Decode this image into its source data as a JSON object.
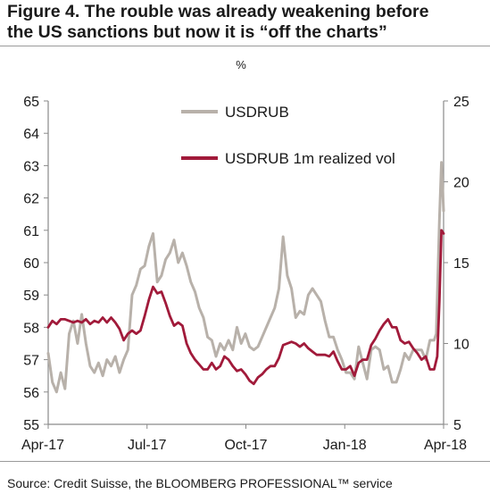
{
  "figure": {
    "title_line1": "Figure 4. The rouble was already weakening before",
    "title_line2": "the US sanctions but now it is “off the charts”",
    "source": "Source: Credit Suisse, the BLOOMBERG PROFESSIONAL™ service"
  },
  "colors": {
    "usdrub": "#b8b1aa",
    "vol": "#a11a3a",
    "axis": "#8a8a8a",
    "rule": "#9a9a9a"
  },
  "chart_data": {
    "type": "line",
    "right_axis_unit": "%",
    "x_tick_labels": [
      "Apr-17",
      "Jul-17",
      "Oct-17",
      "Jan-18",
      "Apr-18"
    ],
    "y_left_ticks": [
      "55",
      "56",
      "57",
      "58",
      "59",
      "60",
      "61",
      "62",
      "63",
      "64",
      "65"
    ],
    "y_right_ticks": [
      "5",
      "10",
      "15",
      "20",
      "25"
    ],
    "ylim_left": [
      55,
      65
    ],
    "ylim_right": [
      5,
      25
    ],
    "x_range": [
      "2017-04-01",
      "2018-04-13"
    ],
    "grid": false,
    "legend_position": "top-center",
    "series": [
      {
        "name": "USDRUB",
        "axis": "left",
        "color": "#b8b1aa",
        "points": [
          [
            "2017-04-01",
            57.2
          ],
          [
            "2017-04-05",
            56.3
          ],
          [
            "2017-04-09",
            56.0
          ],
          [
            "2017-04-13",
            56.6
          ],
          [
            "2017-04-17",
            56.1
          ],
          [
            "2017-04-21",
            57.8
          ],
          [
            "2017-04-25",
            58.2
          ],
          [
            "2017-04-29",
            57.5
          ],
          [
            "2017-05-03",
            58.4
          ],
          [
            "2017-05-07",
            57.5
          ],
          [
            "2017-05-11",
            56.8
          ],
          [
            "2017-05-15",
            56.6
          ],
          [
            "2017-05-19",
            56.9
          ],
          [
            "2017-05-23",
            56.5
          ],
          [
            "2017-05-27",
            57.0
          ],
          [
            "2017-05-31",
            56.8
          ],
          [
            "2017-06-04",
            57.1
          ],
          [
            "2017-06-08",
            56.6
          ],
          [
            "2017-06-12",
            57.0
          ],
          [
            "2017-06-16",
            57.3
          ],
          [
            "2017-06-20",
            59.0
          ],
          [
            "2017-06-24",
            59.3
          ],
          [
            "2017-06-28",
            59.8
          ],
          [
            "2017-07-02",
            59.9
          ],
          [
            "2017-07-06",
            60.5
          ],
          [
            "2017-07-10",
            60.9
          ],
          [
            "2017-07-14",
            59.4
          ],
          [
            "2017-07-18",
            59.6
          ],
          [
            "2017-07-22",
            60.1
          ],
          [
            "2017-07-26",
            60.3
          ],
          [
            "2017-07-30",
            60.7
          ],
          [
            "2017-08-03",
            60.0
          ],
          [
            "2017-08-07",
            60.3
          ],
          [
            "2017-08-11",
            59.9
          ],
          [
            "2017-08-15",
            59.4
          ],
          [
            "2017-08-19",
            59.1
          ],
          [
            "2017-08-23",
            58.6
          ],
          [
            "2017-08-27",
            58.3
          ],
          [
            "2017-08-31",
            57.7
          ],
          [
            "2017-09-04",
            57.6
          ],
          [
            "2017-09-08",
            57.1
          ],
          [
            "2017-09-12",
            57.5
          ],
          [
            "2017-09-16",
            57.3
          ],
          [
            "2017-09-20",
            57.6
          ],
          [
            "2017-09-24",
            57.3
          ],
          [
            "2017-09-28",
            58.0
          ],
          [
            "2017-10-02",
            57.5
          ],
          [
            "2017-10-06",
            57.8
          ],
          [
            "2017-10-10",
            57.4
          ],
          [
            "2017-10-14",
            57.3
          ],
          [
            "2017-10-18",
            57.4
          ],
          [
            "2017-10-22",
            57.7
          ],
          [
            "2017-10-26",
            58.0
          ],
          [
            "2017-10-30",
            58.3
          ],
          [
            "2017-11-03",
            58.6
          ],
          [
            "2017-11-07",
            59.2
          ],
          [
            "2017-11-11",
            60.8
          ],
          [
            "2017-11-15",
            59.6
          ],
          [
            "2017-11-19",
            59.2
          ],
          [
            "2017-11-23",
            58.3
          ],
          [
            "2017-11-27",
            58.5
          ],
          [
            "2017-12-01",
            58.4
          ],
          [
            "2017-12-05",
            59.0
          ],
          [
            "2017-12-09",
            59.2
          ],
          [
            "2017-12-13",
            59.0
          ],
          [
            "2017-12-17",
            58.8
          ],
          [
            "2017-12-21",
            58.2
          ],
          [
            "2017-12-25",
            57.7
          ],
          [
            "2017-12-29",
            57.7
          ],
          [
            "2018-01-02",
            57.3
          ],
          [
            "2018-01-06",
            57.0
          ],
          [
            "2018-01-10",
            56.6
          ],
          [
            "2018-01-14",
            56.6
          ],
          [
            "2018-01-18",
            56.4
          ],
          [
            "2018-01-22",
            57.4
          ],
          [
            "2018-01-26",
            56.9
          ],
          [
            "2018-01-30",
            56.4
          ],
          [
            "2018-02-03",
            57.3
          ],
          [
            "2018-02-07",
            57.4
          ],
          [
            "2018-02-11",
            57.3
          ],
          [
            "2018-02-15",
            56.7
          ],
          [
            "2018-02-19",
            56.8
          ],
          [
            "2018-02-23",
            56.3
          ],
          [
            "2018-02-27",
            56.3
          ],
          [
            "2018-03-03",
            56.7
          ],
          [
            "2018-03-07",
            57.2
          ],
          [
            "2018-03-11",
            57.0
          ],
          [
            "2018-03-15",
            57.3
          ],
          [
            "2018-03-19",
            57.3
          ],
          [
            "2018-03-23",
            57.3
          ],
          [
            "2018-03-27",
            57.0
          ],
          [
            "2018-03-31",
            57.6
          ],
          [
            "2018-04-04",
            57.6
          ],
          [
            "2018-04-06",
            57.8
          ],
          [
            "2018-04-09",
            61.3
          ],
          [
            "2018-04-11",
            63.1
          ],
          [
            "2018-04-13",
            61.6
          ]
        ]
      },
      {
        "name": "USDRUB 1m realized vol",
        "axis": "right",
        "color": "#a11a3a",
        "points": [
          [
            "2017-04-01",
            11.0
          ],
          [
            "2017-04-05",
            11.4
          ],
          [
            "2017-04-09",
            11.2
          ],
          [
            "2017-04-13",
            11.5
          ],
          [
            "2017-04-17",
            11.5
          ],
          [
            "2017-04-21",
            11.4
          ],
          [
            "2017-04-25",
            11.3
          ],
          [
            "2017-04-29",
            11.4
          ],
          [
            "2017-05-03",
            11.3
          ],
          [
            "2017-05-07",
            11.5
          ],
          [
            "2017-05-11",
            11.2
          ],
          [
            "2017-05-15",
            11.4
          ],
          [
            "2017-05-19",
            11.3
          ],
          [
            "2017-05-23",
            11.6
          ],
          [
            "2017-05-27",
            11.3
          ],
          [
            "2017-05-31",
            11.6
          ],
          [
            "2017-06-04",
            11.3
          ],
          [
            "2017-06-08",
            10.9
          ],
          [
            "2017-06-12",
            10.2
          ],
          [
            "2017-06-16",
            10.6
          ],
          [
            "2017-06-20",
            10.8
          ],
          [
            "2017-06-24",
            10.6
          ],
          [
            "2017-06-28",
            10.8
          ],
          [
            "2017-07-02",
            11.7
          ],
          [
            "2017-07-06",
            12.7
          ],
          [
            "2017-07-10",
            13.5
          ],
          [
            "2017-07-14",
            13.1
          ],
          [
            "2017-07-18",
            13.2
          ],
          [
            "2017-07-22",
            12.5
          ],
          [
            "2017-07-26",
            11.7
          ],
          [
            "2017-07-30",
            11.1
          ],
          [
            "2017-08-03",
            11.3
          ],
          [
            "2017-08-07",
            11.1
          ],
          [
            "2017-08-11",
            10.0
          ],
          [
            "2017-08-15",
            9.4
          ],
          [
            "2017-08-19",
            9.0
          ],
          [
            "2017-08-23",
            8.7
          ],
          [
            "2017-08-27",
            8.4
          ],
          [
            "2017-08-31",
            8.4
          ],
          [
            "2017-09-04",
            8.8
          ],
          [
            "2017-09-08",
            8.4
          ],
          [
            "2017-09-12",
            8.6
          ],
          [
            "2017-09-16",
            9.2
          ],
          [
            "2017-09-20",
            9.0
          ],
          [
            "2017-09-24",
            8.6
          ],
          [
            "2017-09-28",
            8.3
          ],
          [
            "2017-10-02",
            8.4
          ],
          [
            "2017-10-06",
            8.1
          ],
          [
            "2017-10-10",
            7.7
          ],
          [
            "2017-10-14",
            7.5
          ],
          [
            "2017-10-18",
            7.9
          ],
          [
            "2017-10-22",
            8.1
          ],
          [
            "2017-10-26",
            8.4
          ],
          [
            "2017-10-30",
            8.6
          ],
          [
            "2017-11-03",
            8.6
          ],
          [
            "2017-11-07",
            9.1
          ],
          [
            "2017-11-11",
            9.9
          ],
          [
            "2017-11-15",
            10.0
          ],
          [
            "2017-11-19",
            10.1
          ],
          [
            "2017-11-23",
            10.0
          ],
          [
            "2017-11-27",
            9.8
          ],
          [
            "2017-12-01",
            10.0
          ],
          [
            "2017-12-05",
            9.7
          ],
          [
            "2017-12-09",
            9.5
          ],
          [
            "2017-12-13",
            9.3
          ],
          [
            "2017-12-17",
            9.3
          ],
          [
            "2017-12-21",
            9.3
          ],
          [
            "2017-12-25",
            9.2
          ],
          [
            "2017-12-29",
            9.5
          ],
          [
            "2018-01-02",
            8.9
          ],
          [
            "2018-01-06",
            8.4
          ],
          [
            "2018-01-10",
            8.4
          ],
          [
            "2018-01-14",
            8.6
          ],
          [
            "2018-01-18",
            8.0
          ],
          [
            "2018-01-22",
            8.8
          ],
          [
            "2018-01-26",
            9.0
          ],
          [
            "2018-01-30",
            9.0
          ],
          [
            "2018-02-03",
            9.9
          ],
          [
            "2018-02-07",
            10.3
          ],
          [
            "2018-02-11",
            10.8
          ],
          [
            "2018-02-15",
            11.2
          ],
          [
            "2018-02-19",
            11.5
          ],
          [
            "2018-02-23",
            11.0
          ],
          [
            "2018-02-27",
            11.0
          ],
          [
            "2018-03-03",
            10.2
          ],
          [
            "2018-03-07",
            10.0
          ],
          [
            "2018-03-11",
            10.1
          ],
          [
            "2018-03-15",
            9.7
          ],
          [
            "2018-03-19",
            9.4
          ],
          [
            "2018-03-23",
            9.0
          ],
          [
            "2018-03-27",
            9.2
          ],
          [
            "2018-03-31",
            8.4
          ],
          [
            "2018-04-04",
            8.4
          ],
          [
            "2018-04-07",
            9.2
          ],
          [
            "2018-04-09",
            12.6
          ],
          [
            "2018-04-11",
            17.0
          ],
          [
            "2018-04-13",
            16.8
          ]
        ]
      }
    ]
  }
}
